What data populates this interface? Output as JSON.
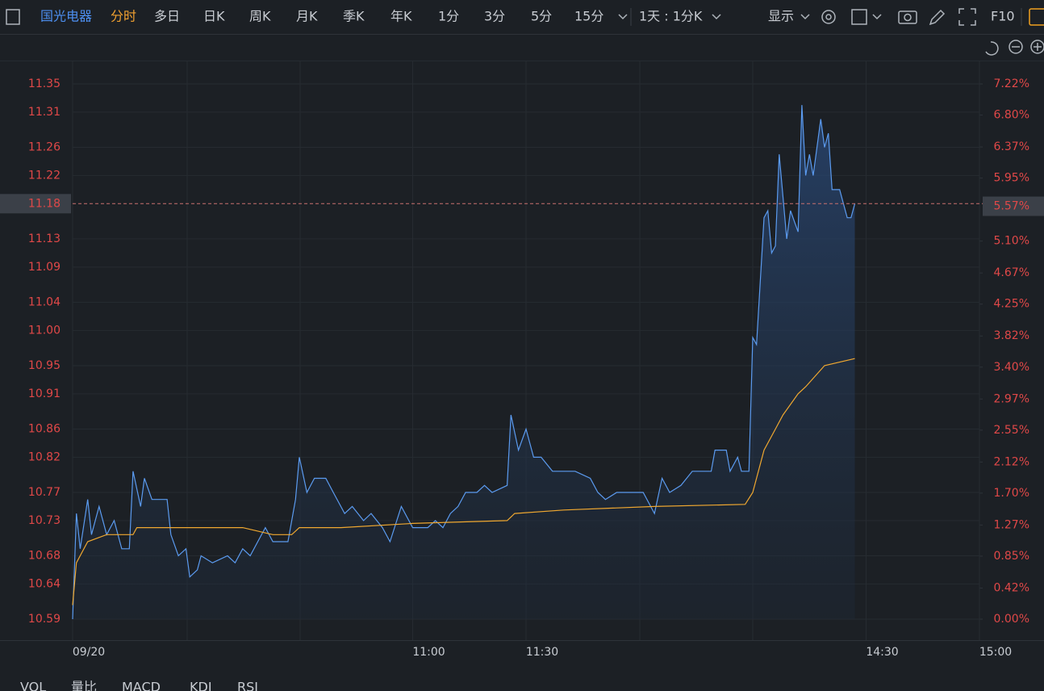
{
  "toolbar": {
    "symbol": "国光电器",
    "tabs": [
      "分时",
      "多日",
      "日K",
      "周K",
      "月K",
      "季K",
      "年K",
      "1分",
      "3分",
      "5分",
      "15分"
    ],
    "period": "1天 : 1分K",
    "display": "显示",
    "f10": "F10"
  },
  "indicators": [
    "VOL",
    "量比",
    "MACD",
    "KDJ",
    "RSI"
  ],
  "chart_data": {
    "type": "line",
    "xlim": [
      0,
      240
    ],
    "xticks": [
      {
        "value": 0,
        "label": "09/20"
      },
      {
        "value": 90,
        "label": "11:00"
      },
      {
        "value": 120,
        "label": "11:30"
      },
      {
        "value": 210,
        "label": "14:30"
      },
      {
        "value": 240,
        "label": "15:00"
      }
    ],
    "ylim": [
      10.59,
      11.35
    ],
    "yticks": [
      11.35,
      11.31,
      11.26,
      11.22,
      11.13,
      11.09,
      11.04,
      {
        "value": 11,
        "label": "11.00"
      },
      10.95,
      10.91,
      10.86,
      10.82,
      10.77,
      10.73,
      10.68,
      10.64,
      10.59
    ],
    "y2lim": [
      0,
      7.22
    ],
    "y2ticks": [
      {
        "value": 7.22,
        "label": "7.22%"
      },
      {
        "value": 6.8,
        "label": "6.80%"
      },
      {
        "value": 6.37,
        "label": "6.37%"
      },
      {
        "value": 5.95,
        "label": "5.95%"
      },
      {
        "value": 5.1,
        "label": "5.10%"
      },
      {
        "value": 4.67,
        "label": "4.67%"
      },
      {
        "value": 4.25,
        "label": "4.25%"
      },
      {
        "value": 3.82,
        "label": "3.82%"
      },
      {
        "value": 3.4,
        "label": "3.40%"
      },
      {
        "value": 2.97,
        "label": "2.97%"
      },
      {
        "value": 2.55,
        "label": "2.55%"
      },
      {
        "value": 2.12,
        "label": "2.12%"
      },
      {
        "value": 1.7,
        "label": "1.70%"
      },
      {
        "value": 1.27,
        "label": "1.27%"
      },
      {
        "value": 0.85,
        "label": "0.85%"
      },
      {
        "value": 0.42,
        "label": "0.42%"
      },
      {
        "value": 0,
        "label": "0.00%"
      }
    ],
    "last_price": {
      "value": 11.18,
      "label": "11.18"
    },
    "last_change": {
      "value": 5.57,
      "label": "5.57%"
    },
    "grid": true,
    "series": [
      {
        "color": "#5b9bf0",
        "fill": true,
        "x": [
          0,
          1,
          2,
          4,
          5,
          7,
          9,
          11,
          13,
          15,
          16,
          18,
          19,
          21,
          23,
          25,
          26,
          28,
          30,
          31,
          33,
          34,
          37,
          41,
          43,
          45,
          47,
          49,
          51,
          53,
          57,
          59,
          60,
          62,
          64,
          67,
          69,
          72,
          74,
          77,
          79,
          82,
          84,
          87,
          90,
          94,
          96,
          98,
          100,
          102,
          104,
          107,
          109,
          111,
          115,
          116,
          118,
          120,
          122,
          124,
          127,
          130,
          133,
          137,
          139,
          141,
          144,
          147,
          151,
          154,
          156,
          158,
          161,
          164,
          169,
          170,
          173,
          174,
          176,
          177,
          179,
          180,
          181,
          183,
          184,
          185,
          186,
          187,
          189,
          190,
          192,
          193,
          194,
          195,
          196,
          198,
          199,
          200,
          201,
          203,
          205,
          206,
          207
        ],
        "values": [
          10.59,
          10.74,
          10.69,
          10.76,
          10.71,
          10.75,
          10.71,
          10.73,
          10.69,
          10.69,
          10.8,
          10.75,
          10.79,
          10.76,
          10.76,
          10.76,
          10.71,
          10.68,
          10.69,
          10.65,
          10.66,
          10.68,
          10.67,
          10.68,
          10.67,
          10.69,
          10.68,
          10.7,
          10.72,
          10.7,
          10.7,
          10.76,
          10.82,
          10.77,
          10.79,
          10.79,
          10.77,
          10.74,
          10.75,
          10.73,
          10.74,
          10.72,
          10.7,
          10.75,
          10.72,
          10.72,
          10.73,
          10.72,
          10.74,
          10.75,
          10.77,
          10.77,
          10.78,
          10.77,
          10.78,
          10.88,
          10.83,
          10.86,
          10.82,
          10.82,
          10.8,
          10.8,
          10.8,
          10.79,
          10.77,
          10.76,
          10.77,
          10.77,
          10.77,
          10.74,
          10.79,
          10.77,
          10.78,
          10.8,
          10.8,
          10.83,
          10.83,
          10.8,
          10.82,
          10.8,
          10.8,
          10.99,
          10.98,
          11.16,
          11.17,
          11.11,
          11.12,
          11.25,
          11.13,
          11.17,
          11.14,
          11.32,
          11.22,
          11.25,
          11.22,
          11.3,
          11.26,
          11.28,
          11.2,
          11.2,
          11.16,
          11.16,
          11.18
        ]
      },
      {
        "color": "#f0a830",
        "fill": false,
        "x": [
          0,
          1,
          4,
          9,
          13,
          16,
          17,
          21,
          30,
          38,
          45,
          53,
          58,
          60,
          71,
          90,
          115,
          117,
          130,
          154,
          178,
          180,
          183,
          186,
          188,
          192,
          194,
          199,
          207
        ],
        "values": [
          10.61,
          10.67,
          10.7,
          10.71,
          10.71,
          10.71,
          10.72,
          10.72,
          10.72,
          10.72,
          10.72,
          10.71,
          10.71,
          10.72,
          10.72,
          10.726,
          10.73,
          10.74,
          10.745,
          10.75,
          10.753,
          10.77,
          10.83,
          10.86,
          10.88,
          10.91,
          10.92,
          10.95,
          10.96
        ]
      }
    ]
  }
}
